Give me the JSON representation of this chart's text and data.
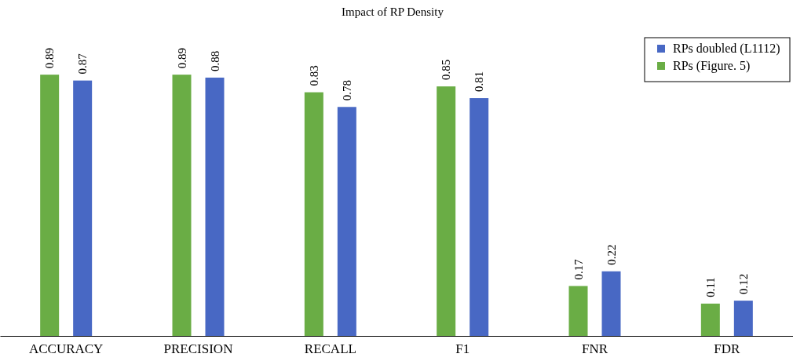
{
  "chart_data": {
    "type": "bar",
    "title": "Impact of RP Density",
    "categories": [
      "ACCURACY",
      "PRECISION",
      "RECALL",
      "F1",
      "FNR",
      "FDR"
    ],
    "series": [
      {
        "name": "RPs (Figure. 5)",
        "color": "#6aad45",
        "values": [
          0.89,
          0.89,
          0.83,
          0.85,
          0.17,
          0.11
        ]
      },
      {
        "name": "RPs doubled (L1112)",
        "color": "#4868c4",
        "values": [
          0.87,
          0.88,
          0.78,
          0.81,
          0.22,
          0.12
        ]
      }
    ],
    "data_labels": true,
    "legend": "top right",
    "grid": false,
    "tick_labels": "x"
  }
}
